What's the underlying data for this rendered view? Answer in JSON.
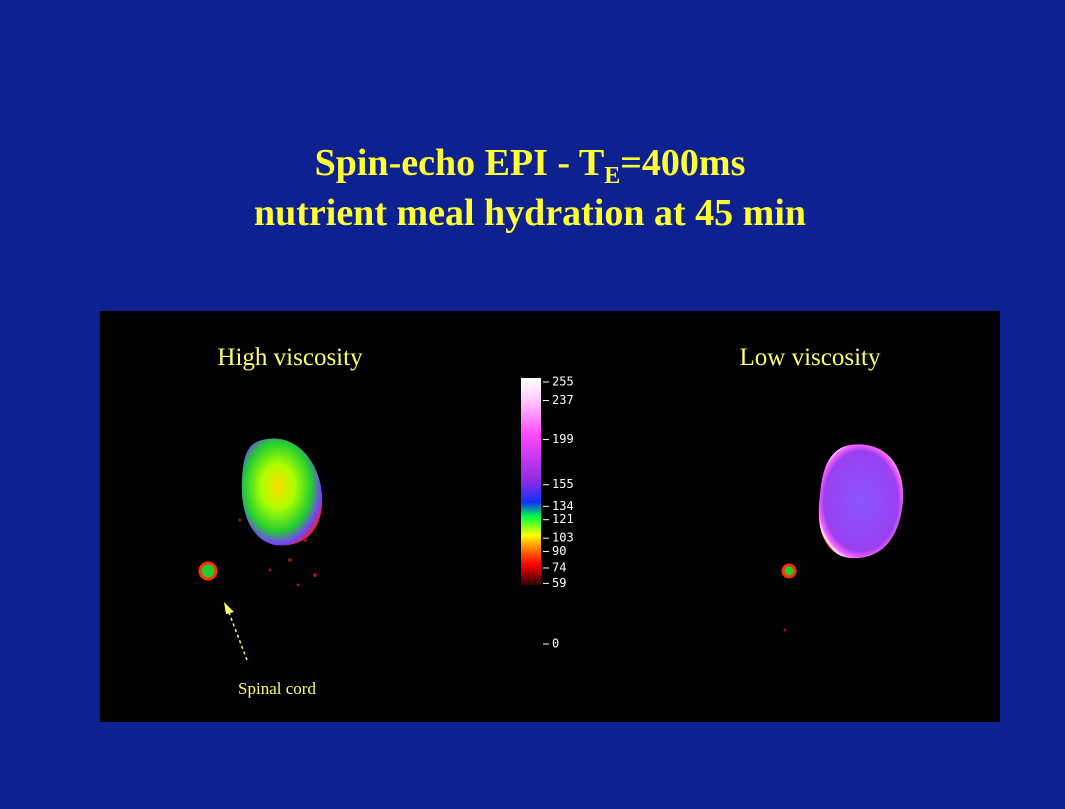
{
  "title": {
    "line1_prefix": "Spin-echo EPI - T",
    "line1_subscript": "E",
    "line1_suffix": "=400ms",
    "line2": "nutrient meal hydration at 45 min"
  },
  "panels": {
    "left_label": "High viscosity",
    "right_label": "Low viscosity",
    "annotation": "Spinal cord"
  },
  "colorbar": {
    "lim": [
      0,
      255
    ],
    "ticks": [
      255,
      237,
      199,
      155,
      134,
      121,
      103,
      90,
      74,
      59,
      0
    ]
  }
}
